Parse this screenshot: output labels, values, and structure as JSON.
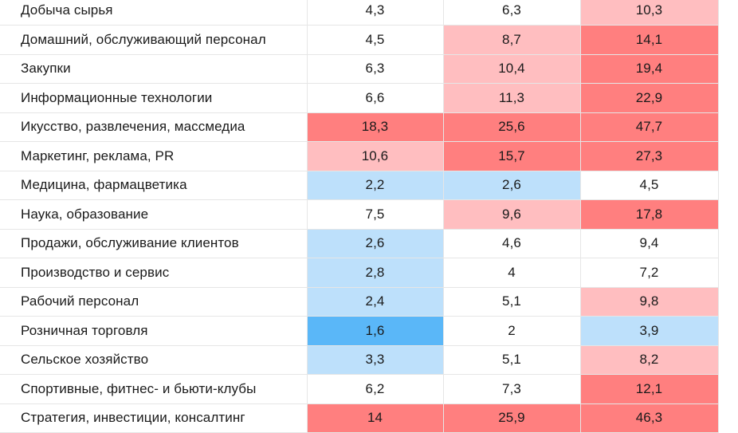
{
  "colors": {
    "very_high": "#ff7f7f",
    "high": "#ffbec0",
    "neutral": "#ffffff",
    "low": "#bde0fb",
    "very_low": "#5ab7f8"
  },
  "rows": [
    {
      "label": "Добыча сырья",
      "values": [
        "4,3",
        "6,3",
        "10,3"
      ],
      "levels": [
        "neutral",
        "neutral",
        "high"
      ]
    },
    {
      "label": "Домашний, обслуживающий персонал",
      "values": [
        "4,5",
        "8,7",
        "14,1"
      ],
      "levels": [
        "neutral",
        "high",
        "very_high"
      ]
    },
    {
      "label": "Закупки",
      "values": [
        "6,3",
        "10,4",
        "19,4"
      ],
      "levels": [
        "neutral",
        "high",
        "very_high"
      ]
    },
    {
      "label": "Информационные технологии",
      "values": [
        "6,6",
        "11,3",
        "22,9"
      ],
      "levels": [
        "neutral",
        "high",
        "very_high"
      ]
    },
    {
      "label": "Икусство, развлечения, массмедиа",
      "values": [
        "18,3",
        "25,6",
        "47,7"
      ],
      "levels": [
        "very_high",
        "very_high",
        "very_high"
      ]
    },
    {
      "label": "Маркетинг, реклама, PR",
      "values": [
        "10,6",
        "15,7",
        "27,3"
      ],
      "levels": [
        "high",
        "very_high",
        "very_high"
      ]
    },
    {
      "label": "Медицина, фармацветика",
      "values": [
        "2,2",
        "2,6",
        "4,5"
      ],
      "levels": [
        "low",
        "low",
        "neutral"
      ]
    },
    {
      "label": "Наука, образование",
      "values": [
        "7,5",
        "9,6",
        "17,8"
      ],
      "levels": [
        "neutral",
        "high",
        "very_high"
      ]
    },
    {
      "label": "Продажи, обслуживание клиентов",
      "values": [
        "2,6",
        "4,6",
        "9,4"
      ],
      "levels": [
        "low",
        "neutral",
        "neutral"
      ]
    },
    {
      "label": "Производство и сервис",
      "values": [
        "2,8",
        "4",
        "7,2"
      ],
      "levels": [
        "low",
        "neutral",
        "neutral"
      ]
    },
    {
      "label": "Рабочий персонал",
      "values": [
        "2,4",
        "5,1",
        "9,8"
      ],
      "levels": [
        "low",
        "neutral",
        "high"
      ]
    },
    {
      "label": "Розничная торговля",
      "values": [
        "1,6",
        "2",
        "3,9"
      ],
      "levels": [
        "very_low",
        "neutral",
        "low"
      ]
    },
    {
      "label": "Сельское хозяйство",
      "values": [
        "3,3",
        "5,1",
        "8,2"
      ],
      "levels": [
        "low",
        "neutral",
        "high"
      ]
    },
    {
      "label": "Спортивные, фитнес- и бьюти-клубы",
      "values": [
        "6,2",
        "7,3",
        "12,1"
      ],
      "levels": [
        "neutral",
        "neutral",
        "very_high"
      ]
    },
    {
      "label": "Стратегия, инвестиции, консалтинг",
      "values": [
        "14",
        "25,9",
        "46,3"
      ],
      "levels": [
        "very_high",
        "very_high",
        "very_high"
      ]
    }
  ]
}
